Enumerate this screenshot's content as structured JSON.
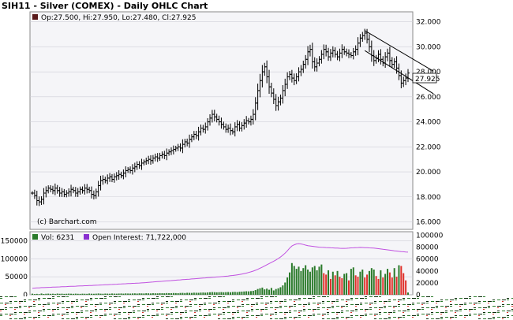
{
  "header": {
    "title": "SIH11 - Silver (COMEX) - Daily OHLC Chart"
  },
  "colors": {
    "bar": "#000000",
    "volume_up": "#2a7a2a",
    "volume_down": "#e0302a",
    "open_interest": "#c050e0",
    "panel_bg": "#f5f5f8",
    "current_price_bg": "#ffffff"
  },
  "chart_data": [
    {
      "type": "ohlc",
      "legend": {
        "ohlc_text": "Op:27.500, Hi:27.950, Lo:27.480, Cl:27.925"
      },
      "watermark": "(c) Barchart.com",
      "current_price": "27.925",
      "ylim": [
        15.4,
        32.8
      ],
      "yticks": [
        "32.000",
        "30.000",
        "28.000",
        "26.000",
        "24.000",
        "22.000",
        "20.000",
        "18.000",
        "16.000"
      ],
      "ytick_values": [
        32,
        30,
        28,
        26,
        24,
        22,
        20,
        18,
        16
      ],
      "close": [
        18.3,
        18.1,
        17.7,
        17.6,
        17.8,
        18.3,
        18.5,
        18.7,
        18.6,
        18.5,
        18.7,
        18.5,
        18.3,
        18.4,
        18.2,
        18.3,
        18.4,
        18.6,
        18.5,
        18.3,
        18.4,
        18.6,
        18.5,
        18.7,
        18.6,
        18.5,
        18.2,
        18.1,
        18.4,
        18.9,
        19.3,
        19.4,
        19.3,
        19.5,
        19.6,
        19.4,
        19.6,
        19.7,
        19.8,
        19.7,
        19.9,
        20.1,
        20.2,
        20.1,
        20.3,
        20.4,
        20.6,
        20.5,
        20.7,
        20.8,
        20.9,
        21.0,
        20.9,
        21.1,
        21.2,
        21.1,
        21.3,
        21.4,
        21.3,
        21.5,
        21.6,
        21.7,
        21.8,
        21.9,
        22.0,
        21.9,
        22.2,
        22.4,
        22.3,
        22.6,
        22.8,
        23.0,
        22.9,
        23.2,
        23.5,
        23.4,
        23.6,
        24.0,
        24.3,
        24.6,
        24.4,
        24.2,
        24.0,
        23.8,
        23.6,
        23.4,
        23.5,
        23.3,
        23.2,
        23.6,
        23.8,
        23.5,
        23.7,
        23.9,
        24.1,
        24.0,
        24.2,
        24.6,
        25.5,
        26.5,
        27.3,
        28.0,
        28.4,
        27.6,
        26.8,
        26.3,
        25.8,
        25.3,
        25.6,
        25.9,
        26.5,
        27.0,
        27.6,
        27.8,
        27.5,
        27.3,
        27.6,
        28.0,
        28.2,
        28.6,
        29.0,
        29.6,
        29.8,
        28.8,
        28.4,
        28.7,
        29.0,
        29.4,
        29.8,
        29.6,
        29.2,
        29.5,
        29.7,
        29.4,
        29.2,
        29.5,
        29.8,
        29.6,
        29.5,
        29.4,
        29.3,
        29.6,
        29.8,
        30.3,
        30.7,
        30.9,
        31.1,
        30.6,
        30.0,
        29.3,
        28.9,
        29.1,
        29.4,
        29.0,
        28.7,
        29.2,
        29.5,
        28.9,
        28.6,
        28.8,
        28.3,
        27.7,
        27.1,
        27.3,
        27.5,
        27.9
      ],
      "trend_channel": {
        "upper": [
          [
            146,
            31.3
          ],
          [
            172,
            28.2
          ]
        ],
        "lower": [
          [
            146,
            29.7
          ],
          [
            172,
            26.4
          ]
        ]
      }
    },
    {
      "type": "bar",
      "legend": {
        "volume_text": "Vol: 6231",
        "open_interest_text": "Open Interest: 71,722,000"
      },
      "left_ylim": [
        0,
        175000
      ],
      "left_yticks": [
        "150000",
        "100000",
        "50000",
        "0"
      ],
      "left_ytick_values": [
        150000,
        100000,
        50000,
        0
      ],
      "right_ylim": [
        0,
        106000
      ],
      "right_yticks": [
        "100000",
        "80000",
        "60000",
        "40000",
        "20000",
        "0"
      ],
      "right_ytick_values": [
        100000,
        80000,
        60000,
        40000,
        20000,
        0
      ],
      "volume": [
        3000,
        2000,
        2500,
        1800,
        3500,
        2200,
        2800,
        3100,
        2600,
        2900,
        2400,
        3300,
        2700,
        3000,
        2500,
        2800,
        3200,
        2900,
        2600,
        3100,
        2700,
        2500,
        3000,
        2800,
        2600,
        3400,
        2900,
        2700,
        3100,
        3600,
        3000,
        2800,
        3300,
        3100,
        2900,
        3500,
        3200,
        3000,
        3400,
        3600,
        3100,
        3800,
        3500,
        3300,
        3700,
        3900,
        3400,
        4000,
        3800,
        3600,
        4200,
        4000,
        3700,
        4300,
        4100,
        3900,
        4500,
        4300,
        4100,
        4700,
        4500,
        4300,
        4800,
        4600,
        4400,
        5000,
        5200,
        4800,
        5500,
        5300,
        5100,
        5800,
        5600,
        5400,
        6000,
        6200,
        5800,
        6500,
        7000,
        7500,
        7200,
        6800,
        7100,
        7400,
        6900,
        7300,
        7600,
        7000,
        7800,
        8100,
        7500,
        8400,
        8800,
        9200,
        9800,
        9500,
        10200,
        11000,
        13000,
        16000,
        18000,
        20000,
        15000,
        17000,
        14000,
        19000,
        12000,
        16000,
        18000,
        21000,
        26000,
        34000,
        48000,
        62000,
        88000,
        80000,
        72000,
        78000,
        66000,
        74000,
        82000,
        70000,
        64000,
        76000,
        80000,
        68000,
        78000,
        84000,
        60000,
        56000,
        68000,
        44000,
        64000,
        54000,
        66000,
        50000,
        46000,
        58000,
        60000,
        40000,
        72000,
        76000,
        54000,
        50000,
        64000,
        70000,
        48000,
        56000,
        66000,
        74000,
        70000,
        52000,
        44000,
        68000,
        48000,
        58000,
        72000,
        62000,
        48000,
        74000,
        50000,
        82000,
        80000,
        60000,
        40000,
        6231
      ],
      "volume_down": [
        false,
        false,
        false,
        false,
        false,
        false,
        false,
        false,
        false,
        false,
        false,
        false,
        false,
        false,
        false,
        false,
        false,
        false,
        false,
        false,
        false,
        false,
        false,
        false,
        false,
        false,
        false,
        false,
        false,
        false,
        false,
        false,
        false,
        false,
        false,
        false,
        false,
        false,
        false,
        false,
        false,
        false,
        false,
        false,
        false,
        false,
        false,
        false,
        false,
        false,
        false,
        false,
        false,
        false,
        false,
        false,
        false,
        false,
        false,
        false,
        false,
        false,
        false,
        false,
        false,
        false,
        false,
        false,
        false,
        false,
        false,
        false,
        false,
        false,
        false,
        false,
        false,
        false,
        false,
        false,
        false,
        false,
        false,
        false,
        false,
        false,
        false,
        false,
        false,
        false,
        false,
        false,
        false,
        false,
        false,
        false,
        false,
        false,
        false,
        false,
        false,
        false,
        false,
        false,
        false,
        false,
        false,
        false,
        false,
        false,
        false,
        false,
        false,
        false,
        false,
        false,
        false,
        false,
        false,
        false,
        false,
        false,
        false,
        false,
        false,
        false,
        false,
        false,
        true,
        true,
        false,
        true,
        false,
        true,
        false,
        true,
        true,
        false,
        false,
        true,
        false,
        false,
        true,
        true,
        false,
        false,
        true,
        true,
        false,
        false,
        false,
        true,
        true,
        false,
        true,
        false,
        false,
        true,
        true,
        false,
        true,
        false,
        true,
        true,
        true,
        false
      ],
      "open_interest": [
        11000,
        11200,
        11500,
        11700,
        12000,
        12100,
        12300,
        12500,
        12600,
        12800,
        13000,
        13100,
        13300,
        13500,
        13700,
        13800,
        14000,
        14200,
        14300,
        14500,
        14700,
        14800,
        15000,
        15200,
        15300,
        15500,
        15700,
        15900,
        16000,
        16200,
        16400,
        16600,
        16800,
        17000,
        17200,
        17400,
        17600,
        17800,
        18000,
        18200,
        18400,
        18600,
        18800,
        19000,
        19200,
        19400,
        19600,
        19800,
        20000,
        20300,
        20600,
        20900,
        21200,
        21500,
        21800,
        22100,
        22400,
        22700,
        23000,
        23300,
        23600,
        23900,
        24200,
        24500,
        24800,
        25100,
        25400,
        25700,
        26000,
        26300,
        26600,
        26900,
        27200,
        27500,
        27800,
        28100,
        28400,
        28700,
        29000,
        29300,
        29600,
        29900,
        30200,
        30500,
        30800,
        31200,
        31600,
        32000,
        32500,
        33000,
        33500,
        34000,
        34800,
        35600,
        36500,
        37500,
        38600,
        39800,
        41200,
        42800,
        44600,
        46500,
        48500,
        50500,
        52500,
        54500,
        56500,
        58500,
        61000,
        63500,
        66500,
        70000,
        74000,
        78500,
        82000,
        84000,
        85500,
        86000,
        85500,
        84500,
        83500,
        82500,
        82000,
        81500,
        81000,
        80500,
        80000,
        79800,
        79600,
        79400,
        79200,
        79000,
        78800,
        78600,
        78400,
        78200,
        78100,
        78000,
        78200,
        78500,
        78800,
        79000,
        79200,
        79400,
        79600,
        79500,
        79300,
        79100,
        78900,
        78700,
        78500,
        78000,
        77500,
        77000,
        76500,
        76000,
        75500,
        75000,
        74500,
        74000,
        73500,
        73000,
        72600,
        72300,
        72000,
        71722
      ]
    }
  ]
}
